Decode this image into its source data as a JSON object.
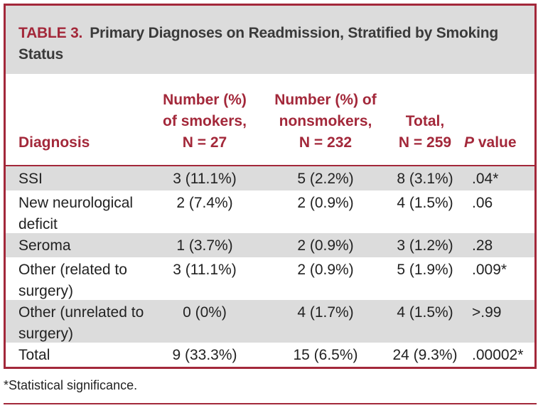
{
  "caption": {
    "label": "TABLE 3.",
    "title": "Primary Diagnoses on Readmission, Stratified by Smoking Status"
  },
  "colors": {
    "accent": "#a3283a",
    "shade": "#dcdcdc"
  },
  "headers": {
    "diagnosis": "Diagnosis",
    "smokers_line1": "Number (%)",
    "smokers_line2": "of smokers,",
    "smokers_line3": "N = 27",
    "nonsmokers_line1": "Number (%) of",
    "nonsmokers_line2": "nonsmokers,",
    "nonsmokers_line3": "N = 232",
    "total_line1": "Total,",
    "total_line2": "N = 259",
    "p_italic": "P",
    "p_rest": " value"
  },
  "rows": [
    {
      "diagnosis": "SSI",
      "smokers": "3 (11.1%)",
      "nonsmokers": "5 (2.2%)",
      "total": "8 (3.1%)",
      "p": ".04*"
    },
    {
      "diagnosis": "New neurological deficit",
      "smokers": "2 (7.4%)",
      "nonsmokers": "2 (0.9%)",
      "total": "4 (1.5%)",
      "p": ".06"
    },
    {
      "diagnosis": "Seroma",
      "smokers": "1 (3.7%)",
      "nonsmokers": "2 (0.9%)",
      "total": "3 (1.2%)",
      "p": ".28"
    },
    {
      "diagnosis": "Other (related to surgery)",
      "smokers": "3 (11.1%)",
      "nonsmokers": "2 (0.9%)",
      "total": "5 (1.9%)",
      "p": ".009*"
    },
    {
      "diagnosis": "Other (unrelated to surgery)",
      "smokers": "0 (0%)",
      "nonsmokers": "4 (1.7%)",
      "total": "4 (1.5%)",
      "p": ">.99"
    },
    {
      "diagnosis": "Total",
      "smokers": "9 (33.3%)",
      "nonsmokers": "15 (6.5%)",
      "total": "24 (9.3%)",
      "p": ".00002*"
    }
  ],
  "footnote": "*Statistical significance."
}
